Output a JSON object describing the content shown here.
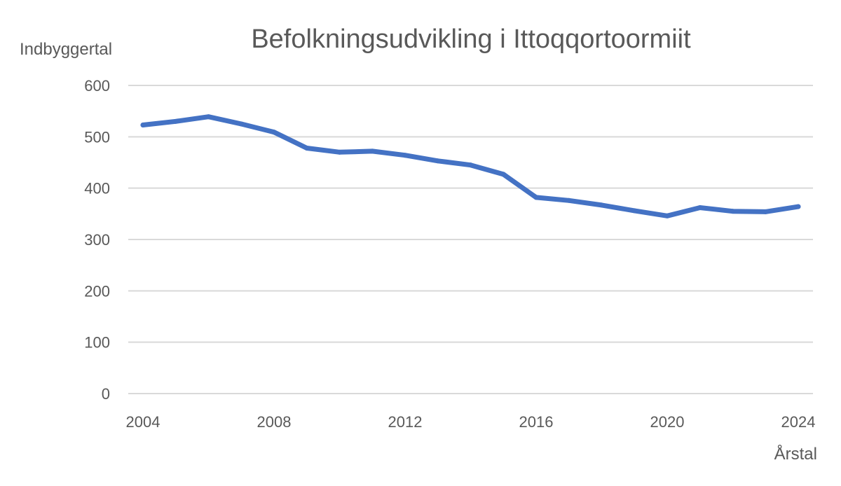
{
  "chart_data": {
    "type": "line",
    "title": "Befolkningsudvikling i Ittoqqortoormiit",
    "ylabel": "Indbyggertal",
    "xlabel": "Årstal",
    "x": [
      2004,
      2005,
      2006,
      2007,
      2008,
      2009,
      2010,
      2011,
      2012,
      2013,
      2014,
      2015,
      2016,
      2017,
      2018,
      2019,
      2020,
      2021,
      2022,
      2023,
      2024
    ],
    "series": [
      {
        "values": [
          523,
          530,
          539,
          525,
          509,
          478,
          470,
          472,
          464,
          453,
          445,
          427,
          382,
          376,
          367,
          356,
          346,
          362,
          355,
          354,
          364
        ]
      }
    ],
    "xticks": [
      2004,
      2008,
      2012,
      2016,
      2020,
      2024
    ],
    "yticks": [
      0,
      100,
      200,
      300,
      400,
      500,
      600
    ],
    "xlim": [
      2004,
      2024
    ],
    "ylim": [
      0,
      600
    ],
    "grid": true,
    "colors": {
      "line": "#4472c4",
      "grid": "#d9d9d9",
      "text": "#595959"
    }
  }
}
